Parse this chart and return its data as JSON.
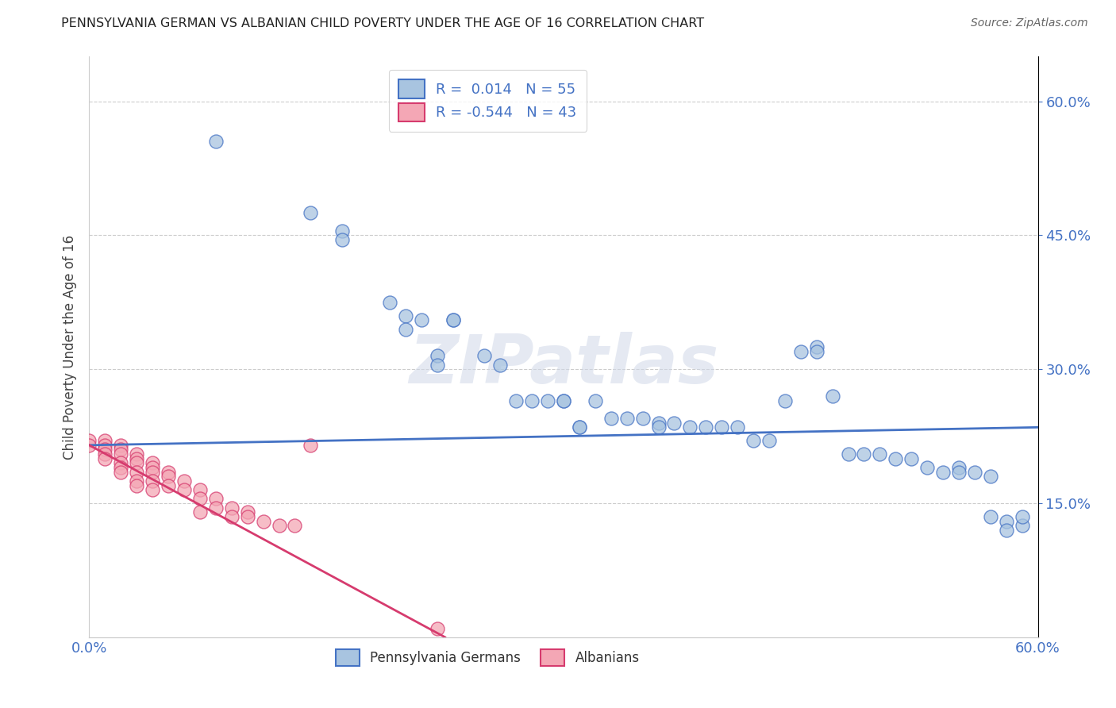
{
  "title": "PENNSYLVANIA GERMAN VS ALBANIAN CHILD POVERTY UNDER THE AGE OF 16 CORRELATION CHART",
  "source": "Source: ZipAtlas.com",
  "ylabel": "Child Poverty Under the Age of 16",
  "xmin": 0.0,
  "xmax": 0.6,
  "ymin": 0.0,
  "ymax": 0.65,
  "yticks": [
    0.15,
    0.3,
    0.45,
    0.6
  ],
  "ytick_labels": [
    "15.0%",
    "30.0%",
    "45.0%",
    "60.0%"
  ],
  "xticks": [
    0.0,
    0.6
  ],
  "xtick_labels": [
    "0.0%",
    "60.0%"
  ],
  "legend_bottom_labels": [
    "Pennsylvania Germans",
    "Albanians"
  ],
  "R_pa": 0.014,
  "N_pa": 55,
  "R_al": -0.544,
  "N_al": 43,
  "pa_color": "#a8c4e0",
  "al_color": "#f4a7b5",
  "line_pa_color": "#4472c4",
  "line_al_color": "#d63b6e",
  "watermark": "ZIPatlas",
  "pa_line_x": [
    0.0,
    0.6
  ],
  "pa_line_y": [
    0.215,
    0.235
  ],
  "al_line_x": [
    0.0,
    0.225
  ],
  "al_line_y": [
    0.215,
    0.0
  ],
  "pa_scatter": [
    [
      0.08,
      0.555
    ],
    [
      0.14,
      0.475
    ],
    [
      0.16,
      0.455
    ],
    [
      0.16,
      0.445
    ],
    [
      0.19,
      0.375
    ],
    [
      0.2,
      0.36
    ],
    [
      0.2,
      0.345
    ],
    [
      0.21,
      0.355
    ],
    [
      0.22,
      0.315
    ],
    [
      0.22,
      0.305
    ],
    [
      0.23,
      0.355
    ],
    [
      0.23,
      0.355
    ],
    [
      0.25,
      0.315
    ],
    [
      0.26,
      0.305
    ],
    [
      0.27,
      0.265
    ],
    [
      0.28,
      0.265
    ],
    [
      0.29,
      0.265
    ],
    [
      0.3,
      0.265
    ],
    [
      0.3,
      0.265
    ],
    [
      0.31,
      0.235
    ],
    [
      0.31,
      0.235
    ],
    [
      0.32,
      0.265
    ],
    [
      0.33,
      0.245
    ],
    [
      0.34,
      0.245
    ],
    [
      0.35,
      0.245
    ],
    [
      0.36,
      0.24
    ],
    [
      0.36,
      0.235
    ],
    [
      0.37,
      0.24
    ],
    [
      0.38,
      0.235
    ],
    [
      0.39,
      0.235
    ],
    [
      0.4,
      0.235
    ],
    [
      0.41,
      0.235
    ],
    [
      0.42,
      0.22
    ],
    [
      0.43,
      0.22
    ],
    [
      0.44,
      0.265
    ],
    [
      0.45,
      0.32
    ],
    [
      0.46,
      0.325
    ],
    [
      0.46,
      0.32
    ],
    [
      0.47,
      0.27
    ],
    [
      0.48,
      0.205
    ],
    [
      0.49,
      0.205
    ],
    [
      0.5,
      0.205
    ],
    [
      0.51,
      0.2
    ],
    [
      0.52,
      0.2
    ],
    [
      0.53,
      0.19
    ],
    [
      0.54,
      0.185
    ],
    [
      0.55,
      0.19
    ],
    [
      0.55,
      0.185
    ],
    [
      0.56,
      0.185
    ],
    [
      0.57,
      0.18
    ],
    [
      0.57,
      0.135
    ],
    [
      0.58,
      0.13
    ],
    [
      0.58,
      0.12
    ],
    [
      0.59,
      0.125
    ],
    [
      0.59,
      0.135
    ]
  ],
  "al_scatter": [
    [
      0.0,
      0.22
    ],
    [
      0.0,
      0.215
    ],
    [
      0.01,
      0.22
    ],
    [
      0.01,
      0.215
    ],
    [
      0.01,
      0.21
    ],
    [
      0.01,
      0.205
    ],
    [
      0.01,
      0.2
    ],
    [
      0.02,
      0.215
    ],
    [
      0.02,
      0.21
    ],
    [
      0.02,
      0.205
    ],
    [
      0.02,
      0.195
    ],
    [
      0.02,
      0.19
    ],
    [
      0.02,
      0.185
    ],
    [
      0.03,
      0.205
    ],
    [
      0.03,
      0.2
    ],
    [
      0.03,
      0.195
    ],
    [
      0.03,
      0.185
    ],
    [
      0.03,
      0.175
    ],
    [
      0.03,
      0.17
    ],
    [
      0.04,
      0.195
    ],
    [
      0.04,
      0.19
    ],
    [
      0.04,
      0.185
    ],
    [
      0.04,
      0.175
    ],
    [
      0.04,
      0.165
    ],
    [
      0.05,
      0.185
    ],
    [
      0.05,
      0.18
    ],
    [
      0.05,
      0.17
    ],
    [
      0.06,
      0.175
    ],
    [
      0.06,
      0.165
    ],
    [
      0.07,
      0.165
    ],
    [
      0.07,
      0.155
    ],
    [
      0.07,
      0.14
    ],
    [
      0.08,
      0.155
    ],
    [
      0.08,
      0.145
    ],
    [
      0.09,
      0.145
    ],
    [
      0.09,
      0.135
    ],
    [
      0.1,
      0.14
    ],
    [
      0.1,
      0.135
    ],
    [
      0.11,
      0.13
    ],
    [
      0.12,
      0.125
    ],
    [
      0.13,
      0.125
    ],
    [
      0.14,
      0.215
    ],
    [
      0.22,
      0.01
    ]
  ]
}
